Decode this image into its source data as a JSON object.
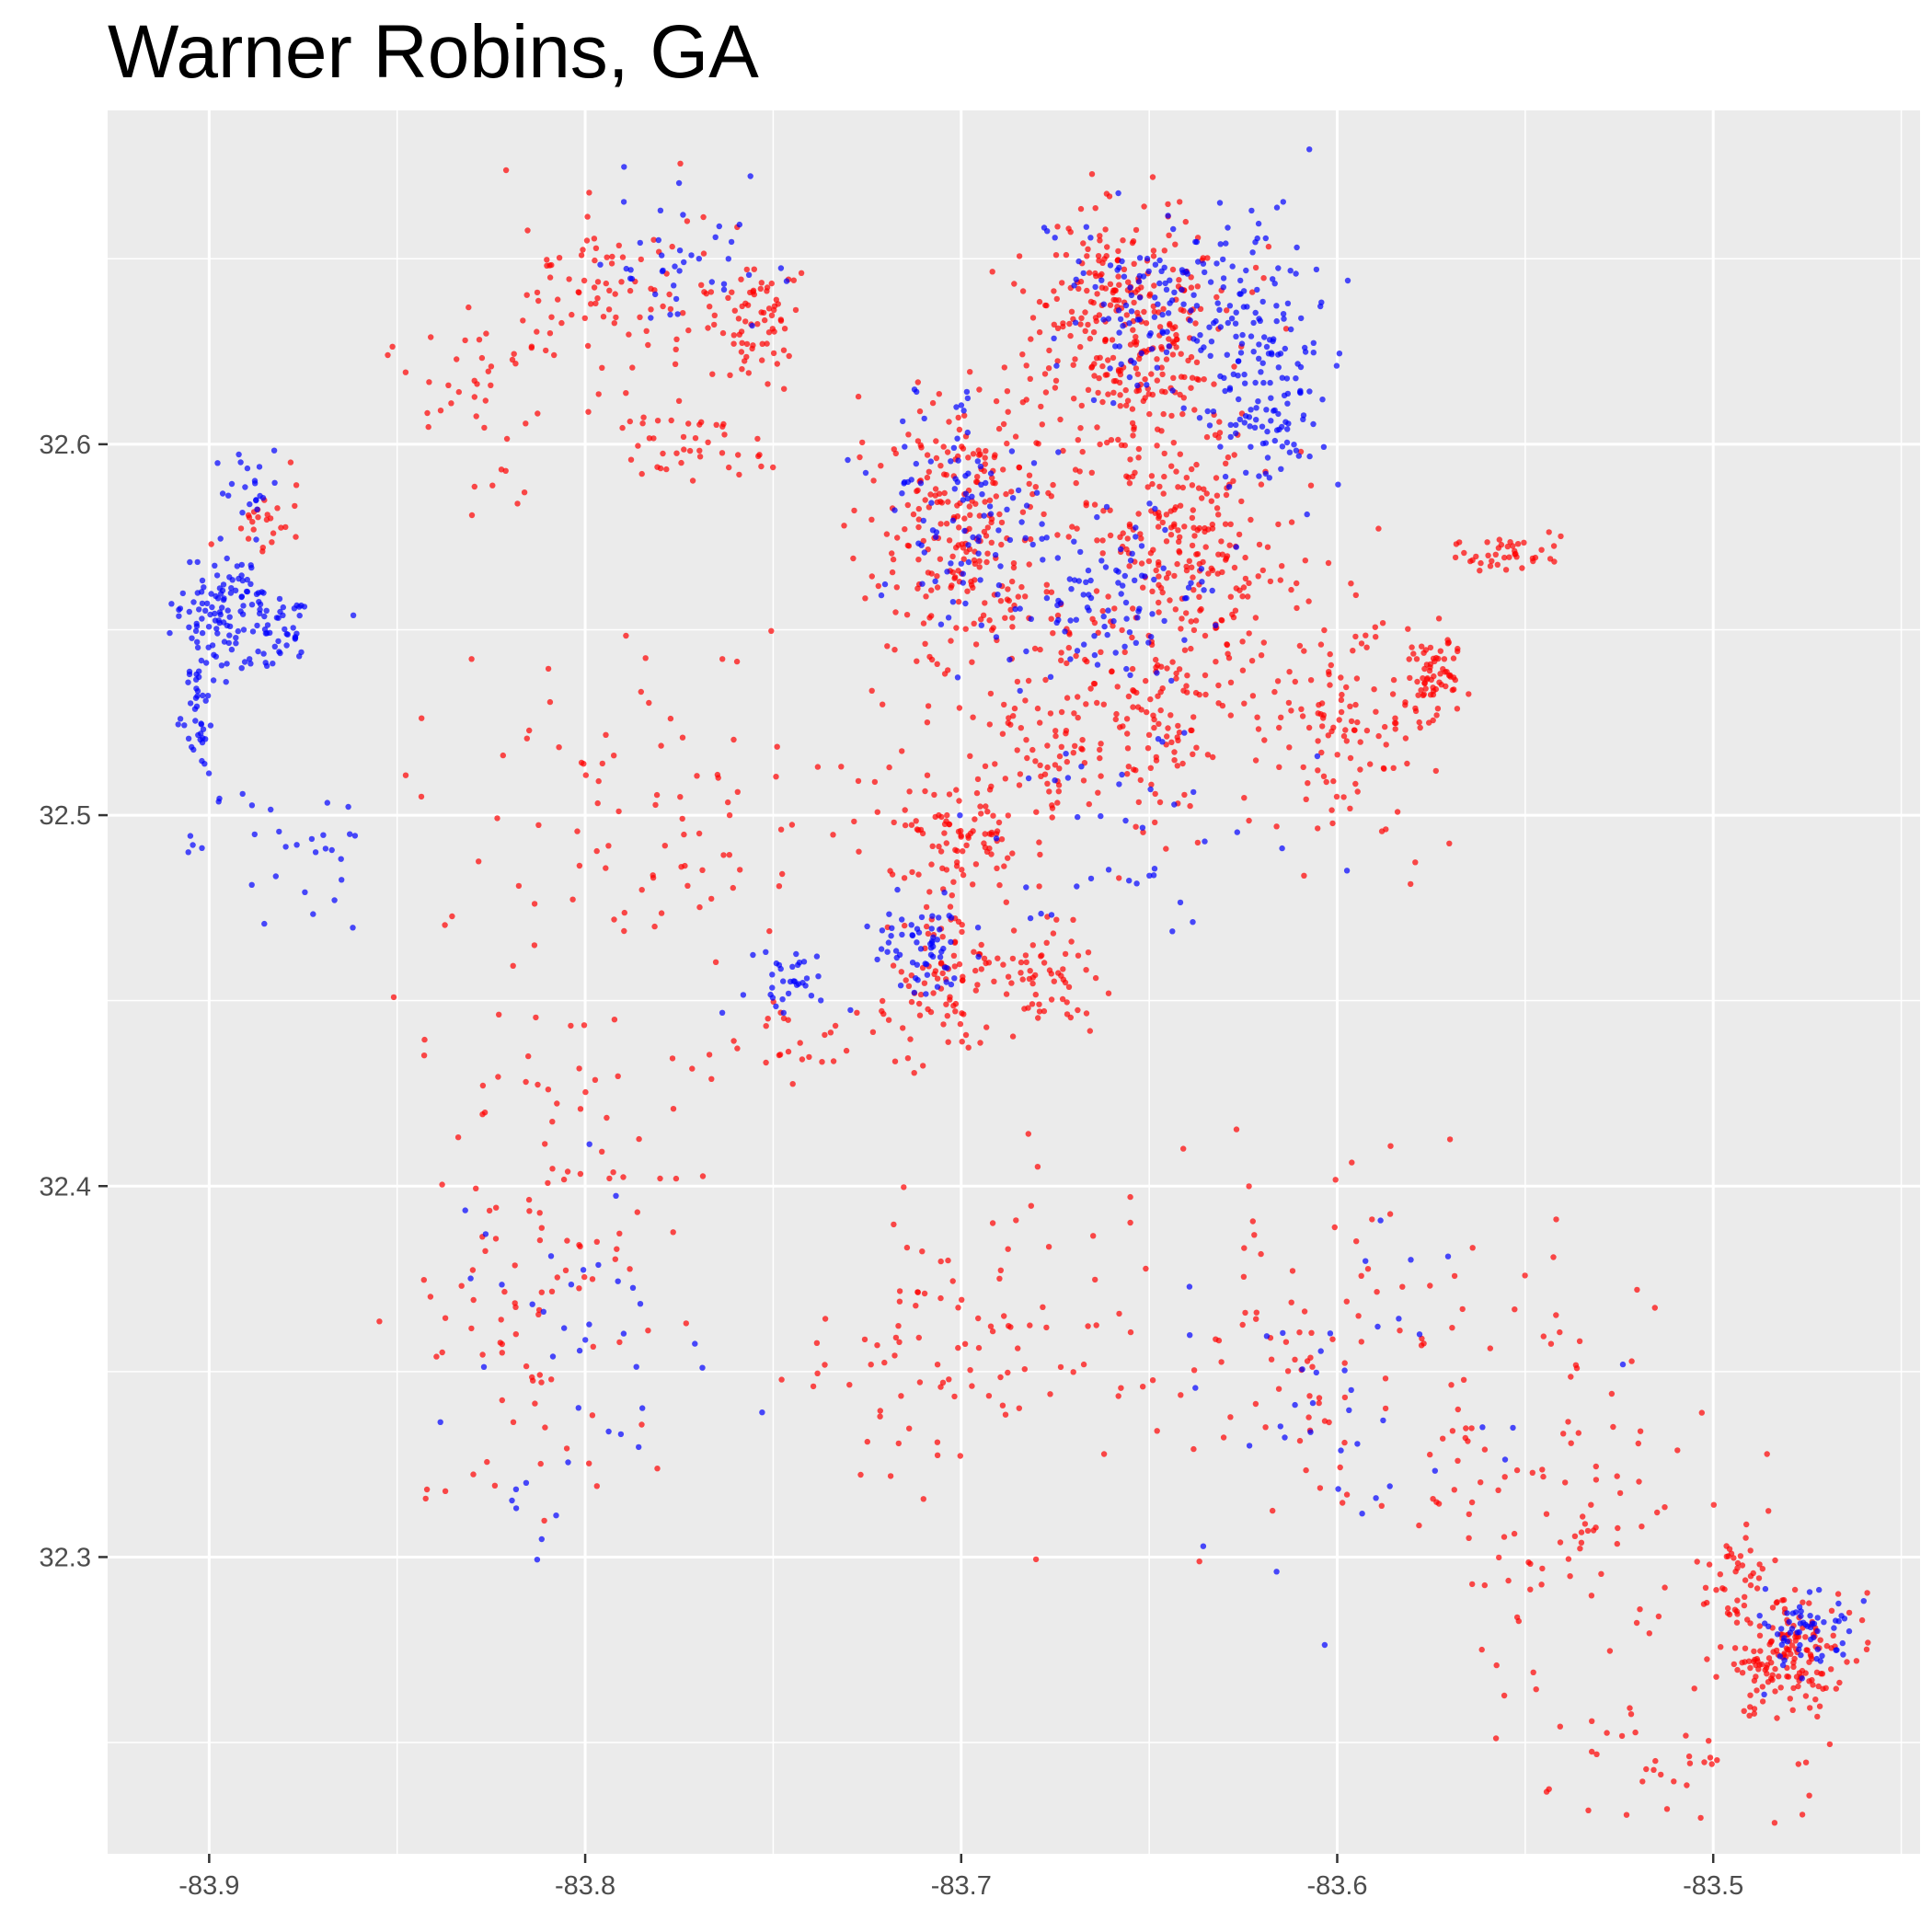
{
  "title": "Warner Robins, GA",
  "colors": {
    "panel_background": "#ebebeb",
    "grid_major": "#ffffff",
    "series_red": "#ff0000",
    "series_blue": "#0000ff",
    "tick_text": "#4d4d4d"
  },
  "chart_data": {
    "type": "scatter",
    "title": "Warner Robins, GA",
    "xlabel": "",
    "ylabel": "",
    "xlim": [
      -83.927,
      -83.445
    ],
    "ylim": [
      32.22,
      32.69
    ],
    "x_ticks": [
      -83.9,
      -83.8,
      -83.7,
      -83.6,
      -83.5
    ],
    "x_tick_labels": [
      "-83.9",
      "-83.8",
      "-83.7",
      "-83.6",
      "-83.5"
    ],
    "y_ticks": [
      32.3,
      32.4,
      32.5,
      32.6
    ],
    "y_tick_labels": [
      "32.3",
      "32.4",
      "32.5",
      "32.6"
    ],
    "grid": true,
    "legend": "none",
    "series": [
      {
        "color": "#ff0000",
        "clusters": [
          {
            "center": [
              -83.655,
              32.63
            ],
            "spread": [
              0.022,
              0.03
            ],
            "n": 320
          },
          {
            "center": [
              -83.7,
              32.578
            ],
            "spread": [
              0.022,
              0.03
            ],
            "n": 260
          },
          {
            "center": [
              -83.64,
              32.572
            ],
            "spread": [
              0.022,
              0.028
            ],
            "n": 220
          },
          {
            "center": [
              -83.66,
              32.525
            ],
            "spread": [
              0.028,
              0.025
            ],
            "n": 200
          },
          {
            "center": [
              -83.7,
              32.495
            ],
            "spread": [
              0.02,
              0.02
            ],
            "n": 110
          },
          {
            "center": [
              -83.705,
              32.455
            ],
            "spread": [
              0.018,
              0.015
            ],
            "n": 90
          },
          {
            "center": [
              -83.675,
              32.455
            ],
            "spread": [
              0.01,
              0.012
            ],
            "n": 50
          },
          {
            "center": [
              -83.6,
              32.525
            ],
            "spread": [
              0.018,
              0.03
            ],
            "n": 120
          },
          {
            "center": [
              -83.575,
              32.537
            ],
            "spread": [
              0.008,
              0.01
            ],
            "n": 70
          },
          {
            "center": [
              -83.555,
              32.57
            ],
            "spread": [
              0.012,
              0.004
            ],
            "n": 40
          },
          {
            "center": [
              -83.755,
              32.635
            ],
            "spread": [
              0.012,
              0.015
            ],
            "n": 70
          },
          {
            "center": [
              -83.79,
              32.64
            ],
            "spread": [
              0.025,
              0.02
            ],
            "n": 90
          },
          {
            "center": [
              -83.77,
              32.6
            ],
            "spread": [
              0.015,
              0.01
            ],
            "n": 40
          },
          {
            "center": [
              -83.48,
              32.275
            ],
            "spread": [
              0.014,
              0.012
            ],
            "n": 160
          },
          {
            "center": [
              -83.495,
              32.295
            ],
            "spread": [
              0.008,
              0.01
            ],
            "n": 40
          },
          {
            "center": [
              -83.81,
              32.38
            ],
            "spread": [
              0.03,
              0.06
            ],
            "n": 120
          },
          {
            "center": [
              -83.61,
              32.355
            ],
            "spread": [
              0.06,
              0.04
            ],
            "n": 130
          },
          {
            "center": [
              -83.7,
              32.355
            ],
            "spread": [
              0.03,
              0.03
            ],
            "n": 80
          },
          {
            "center": [
              -83.54,
              32.31
            ],
            "spread": [
              0.03,
              0.04
            ],
            "n": 80
          },
          {
            "center": [
              -83.78,
              32.5
            ],
            "spread": [
              0.04,
              0.04
            ],
            "n": 90
          },
          {
            "center": [
              -83.885,
              32.58
            ],
            "spread": [
              0.008,
              0.01
            ],
            "n": 25
          },
          {
            "center": [
              -83.83,
              32.61
            ],
            "spread": [
              0.02,
              0.02
            ],
            "n": 40
          },
          {
            "center": [
              -83.745,
              32.44
            ],
            "spread": [
              0.02,
              0.01
            ],
            "n": 30
          },
          {
            "center": [
              -83.51,
              32.245
            ],
            "spread": [
              0.03,
              0.012
            ],
            "n": 40
          }
        ]
      },
      {
        "color": "#0000ff",
        "clusters": [
          {
            "center": [
              -83.62,
              32.62
            ],
            "spread": [
              0.015,
              0.03
            ],
            "n": 170
          },
          {
            "center": [
              -83.65,
              32.64
            ],
            "spread": [
              0.02,
              0.02
            ],
            "n": 110
          },
          {
            "center": [
              -83.895,
              32.555
            ],
            "spread": [
              0.01,
              0.012
            ],
            "n": 110
          },
          {
            "center": [
              -83.88,
              32.55
            ],
            "spread": [
              0.008,
              0.008
            ],
            "n": 40
          },
          {
            "center": [
              -83.903,
              32.525
            ],
            "spread": [
              0.003,
              0.015
            ],
            "n": 40
          },
          {
            "center": [
              -83.71,
              32.465
            ],
            "spread": [
              0.01,
              0.012
            ],
            "n": 60
          },
          {
            "center": [
              -83.745,
              32.455
            ],
            "spread": [
              0.01,
              0.008
            ],
            "n": 35
          },
          {
            "center": [
              -83.7,
              32.58
            ],
            "spread": [
              0.02,
              0.03
            ],
            "n": 100
          },
          {
            "center": [
              -83.66,
              32.56
            ],
            "spread": [
              0.02,
              0.02
            ],
            "n": 90
          },
          {
            "center": [
              -83.77,
              32.65
            ],
            "spread": [
              0.02,
              0.015
            ],
            "n": 40
          },
          {
            "center": [
              -83.475,
              32.28
            ],
            "spread": [
              0.01,
              0.01
            ],
            "n": 60
          },
          {
            "center": [
              -83.88,
              32.49
            ],
            "spread": [
              0.02,
              0.02
            ],
            "n": 30
          },
          {
            "center": [
              -83.65,
              32.5
            ],
            "spread": [
              0.03,
              0.03
            ],
            "n": 40
          },
          {
            "center": [
              -83.8,
              32.36
            ],
            "spread": [
              0.03,
              0.05
            ],
            "n": 40
          },
          {
            "center": [
              -83.6,
              32.34
            ],
            "spread": [
              0.05,
              0.04
            ],
            "n": 40
          },
          {
            "center": [
              -83.89,
              32.59
            ],
            "spread": [
              0.008,
              0.01
            ],
            "n": 20
          }
        ]
      }
    ]
  }
}
